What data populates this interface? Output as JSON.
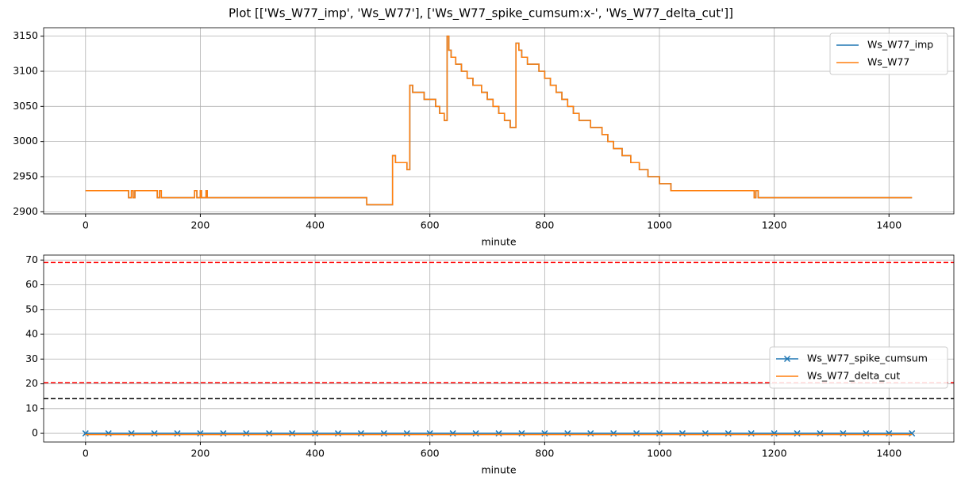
{
  "title": "Plot [['Ws_W77_imp', 'Ws_W77'], ['Ws_W77_spike_cumsum:x-', 'Ws_W77_delta_cut']]",
  "chart_data": [
    {
      "type": "line",
      "xlabel": "minute",
      "grid": true,
      "legend": "upper right",
      "xlim": [
        -73,
        1513
      ],
      "ylim": [
        2897,
        3162
      ],
      "xticks": [
        0,
        200,
        400,
        600,
        800,
        1000,
        1200,
        1400
      ],
      "yticks": [
        2900,
        2950,
        3000,
        3050,
        3100,
        3150
      ],
      "x": [
        0,
        75,
        75,
        80,
        80,
        83,
        83,
        86,
        86,
        125,
        125,
        129,
        129,
        132,
        132,
        190,
        190,
        194,
        194,
        200,
        200,
        202,
        202,
        210,
        210,
        212,
        212,
        490,
        490,
        535,
        535,
        540,
        540,
        560,
        560,
        565,
        565,
        570,
        570,
        590,
        590,
        610,
        610,
        617,
        617,
        625,
        625,
        630,
        630,
        633,
        633,
        637,
        637,
        645,
        645,
        655,
        655,
        665,
        665,
        675,
        675,
        690,
        690,
        700,
        700,
        710,
        710,
        720,
        720,
        730,
        730,
        740,
        740,
        750,
        750,
        755,
        755,
        760,
        760,
        770,
        770,
        790,
        790,
        800,
        800,
        810,
        810,
        820,
        820,
        830,
        830,
        840,
        840,
        850,
        850,
        860,
        860,
        880,
        880,
        900,
        900,
        910,
        910,
        920,
        920,
        935,
        935,
        950,
        950,
        965,
        965,
        980,
        980,
        1000,
        1000,
        1020,
        1020,
        1165,
        1165,
        1168,
        1168,
        1172,
        1172,
        1440
      ],
      "series": [
        {
          "name": "Ws_W77_imp",
          "color": "#1f77b4",
          "values": [
            2930,
            2930,
            2920,
            2920,
            2930,
            2930,
            2920,
            2920,
            2930,
            2930,
            2920,
            2920,
            2930,
            2930,
            2920,
            2920,
            2930,
            2930,
            2920,
            2920,
            2930,
            2930,
            2920,
            2920,
            2930,
            2930,
            2920,
            2920,
            2910,
            2910,
            2980,
            2980,
            2970,
            2970,
            2960,
            2960,
            3080,
            3080,
            3070,
            3070,
            3060,
            3060,
            3050,
            3050,
            3040,
            3040,
            3030,
            3030,
            3150,
            3150,
            3130,
            3130,
            3120,
            3120,
            3110,
            3110,
            3100,
            3100,
            3090,
            3090,
            3080,
            3080,
            3070,
            3070,
            3060,
            3060,
            3050,
            3050,
            3040,
            3040,
            3030,
            3030,
            3020,
            3020,
            3140,
            3140,
            3130,
            3130,
            3120,
            3120,
            3110,
            3110,
            3100,
            3100,
            3090,
            3090,
            3080,
            3080,
            3070,
            3070,
            3060,
            3060,
            3050,
            3050,
            3040,
            3040,
            3030,
            3030,
            3020,
            3020,
            3010,
            3010,
            3000,
            3000,
            2990,
            2990,
            2980,
            2980,
            2970,
            2970,
            2960,
            2960,
            2950,
            2950,
            2940,
            2940,
            2930,
            2930,
            2920,
            2920,
            2930,
            2930,
            2920,
            2920
          ]
        },
        {
          "name": "Ws_W77",
          "color": "#ff7f0e",
          "values": [
            2930,
            2930,
            2920,
            2920,
            2930,
            2930,
            2920,
            2920,
            2930,
            2930,
            2920,
            2920,
            2930,
            2930,
            2920,
            2920,
            2930,
            2930,
            2920,
            2920,
            2930,
            2930,
            2920,
            2920,
            2930,
            2930,
            2920,
            2920,
            2910,
            2910,
            2980,
            2980,
            2970,
            2970,
            2960,
            2960,
            3080,
            3080,
            3070,
            3070,
            3060,
            3060,
            3050,
            3050,
            3040,
            3040,
            3030,
            3030,
            3150,
            3150,
            3130,
            3130,
            3120,
            3120,
            3110,
            3110,
            3100,
            3100,
            3090,
            3090,
            3080,
            3080,
            3070,
            3070,
            3060,
            3060,
            3050,
            3050,
            3040,
            3040,
            3030,
            3030,
            3020,
            3020,
            3140,
            3140,
            3130,
            3130,
            3120,
            3120,
            3110,
            3110,
            3100,
            3100,
            3090,
            3090,
            3080,
            3080,
            3070,
            3070,
            3060,
            3060,
            3050,
            3050,
            3040,
            3040,
            3030,
            3030,
            3020,
            3020,
            3010,
            3010,
            3000,
            3000,
            2990,
            2990,
            2980,
            2980,
            2970,
            2970,
            2960,
            2960,
            2950,
            2950,
            2940,
            2940,
            2930,
            2930,
            2920,
            2920,
            2930,
            2930,
            2920,
            2920
          ]
        }
      ]
    },
    {
      "type": "line",
      "xlabel": "minute",
      "grid": true,
      "legend": "center right",
      "xlim": [
        -73,
        1513
      ],
      "ylim": [
        -3.5,
        72
      ],
      "xticks": [
        0,
        200,
        400,
        600,
        800,
        1000,
        1200,
        1400
      ],
      "yticks": [
        0,
        10,
        20,
        30,
        40,
        50,
        60,
        70
      ],
      "x": [
        0,
        40,
        80,
        120,
        160,
        200,
        240,
        280,
        320,
        360,
        400,
        440,
        480,
        520,
        560,
        600,
        640,
        680,
        720,
        760,
        800,
        840,
        880,
        920,
        960,
        1000,
        1040,
        1080,
        1120,
        1160,
        1200,
        1240,
        1280,
        1320,
        1360,
        1400,
        1440
      ],
      "series": [
        {
          "name": "Ws_W77_spike_cumsum",
          "color": "#1f77b4",
          "marker": "x",
          "values": [
            0,
            0,
            0,
            0,
            0,
            0,
            0,
            0,
            0,
            0,
            0,
            0,
            0,
            0,
            0,
            0,
            0,
            0,
            0,
            0,
            0,
            0,
            0,
            0,
            0,
            0,
            0,
            0,
            0,
            0,
            0,
            0,
            0,
            0,
            0,
            0,
            0
          ]
        },
        {
          "name": "Ws_W77_delta_cut",
          "color": "#ff7f0e",
          "values": [
            -0.5,
            -0.5,
            -0.5,
            -0.5,
            -0.5,
            -0.5,
            -0.5,
            -0.5,
            -0.5,
            -0.5,
            -0.5,
            -0.5,
            -0.5,
            -0.5,
            -0.5,
            -0.5,
            -0.5,
            -0.5,
            -0.5,
            -0.5,
            -0.5,
            -0.5,
            -0.5,
            -0.5,
            -0.5,
            -0.5,
            -0.5,
            -0.5,
            -0.5,
            -0.5,
            -0.5,
            -0.5,
            -0.5,
            -0.5,
            -0.5,
            -0.5,
            -0.5
          ]
        }
      ],
      "hlines": [
        {
          "value": 69,
          "color": "#ff0000"
        },
        {
          "value": 20.5,
          "color": "#ff0000"
        },
        {
          "value": 14,
          "color": "#000000"
        }
      ]
    }
  ]
}
